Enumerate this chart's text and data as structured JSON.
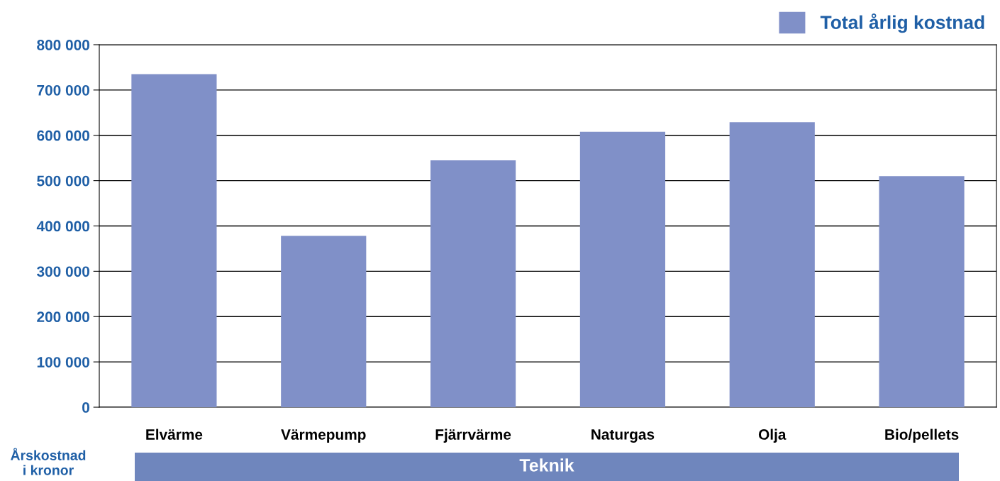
{
  "chart_data": {
    "type": "bar",
    "xlabel": "Teknik",
    "ylabel": "Årskostnad\ni kronor",
    "categories": [
      "Elvärme",
      "Värmepump",
      "Fjärrvärme",
      "Naturgas",
      "Olja",
      "Bio/pellets"
    ],
    "series": [
      {
        "name": "Total årlig kostnad",
        "color": "#8090c8",
        "values": [
          735000,
          378000,
          545000,
          608000,
          629000,
          510000
        ]
      }
    ],
    "ylim": [
      0,
      800000
    ],
    "yticks": [
      {
        "value": 0,
        "label": "0"
      },
      {
        "value": 100000,
        "label": "100 000"
      },
      {
        "value": 200000,
        "label": "200 000"
      },
      {
        "value": 300000,
        "label": "300 000"
      },
      {
        "value": 400000,
        "label": "400 000"
      },
      {
        "value": 500000,
        "label": "500 000"
      },
      {
        "value": 600000,
        "label": "600 000"
      },
      {
        "value": 700000,
        "label": "700 000"
      },
      {
        "value": 800000,
        "label": "800 000"
      }
    ],
    "grid": "y",
    "legend": "top right"
  }
}
